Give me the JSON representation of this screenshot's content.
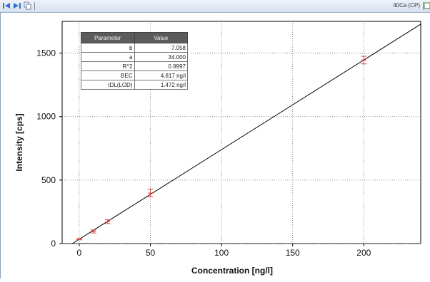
{
  "toolbar": {
    "first_icon": "skip-first-icon",
    "next_icon": "play-next-icon",
    "copy_icon": "copy-icon",
    "series_label": "40Ca (CP)",
    "chart_icon": "chart-icon"
  },
  "colors": {
    "fit_line": "#000000",
    "points": "#e04545",
    "grid": "#6a6a6a",
    "table_header": "#5b5b5b"
  },
  "param_table": {
    "headers": [
      "Parameter",
      "Value"
    ],
    "rows": [
      {
        "parameter": "b",
        "value": "7.058"
      },
      {
        "parameter": "a",
        "value": "34.000"
      },
      {
        "parameter": "R^2",
        "value": "0.9997"
      },
      {
        "parameter": "BEC",
        "value": "4.817 ng/l"
      },
      {
        "parameter": "IDL(LOD)",
        "value": "1.472 ng/l"
      }
    ]
  },
  "chart_data": {
    "type": "scatter",
    "xlabel": "Concentration [ng/l]",
    "ylabel": "Intensity [cps]",
    "xlim": [
      -12,
      240
    ],
    "ylim": [
      0,
      1750
    ],
    "xticks": [
      0,
      50,
      100,
      150,
      200
    ],
    "yticks": [
      0,
      500,
      1000,
      1500
    ],
    "grid": true,
    "points": [
      {
        "x": 0,
        "y": 34,
        "err": 5
      },
      {
        "x": 10,
        "y": 95,
        "err": 12
      },
      {
        "x": 20,
        "y": 172,
        "err": 15
      },
      {
        "x": 50,
        "y": 397,
        "err": 30
      },
      {
        "x": 200,
        "y": 1445,
        "err": 30
      }
    ],
    "fit_line": {
      "slope": 7.058,
      "intercept": 34.0
    }
  }
}
